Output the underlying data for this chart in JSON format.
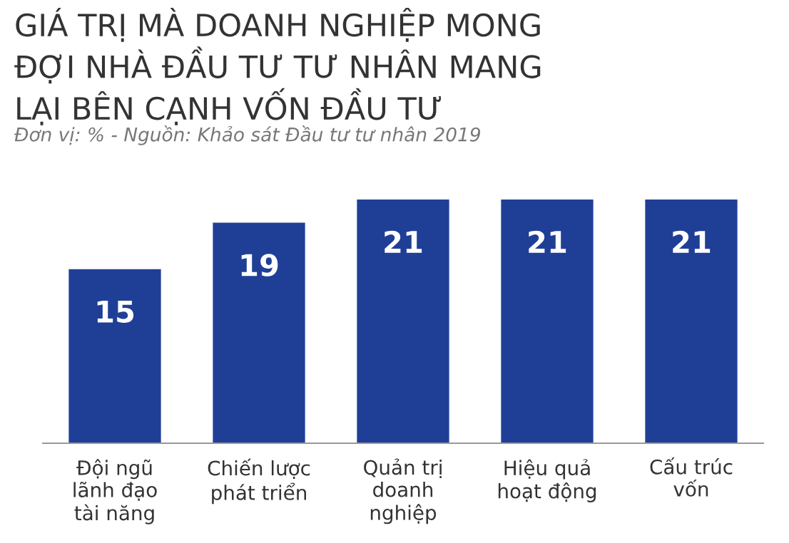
{
  "chart_data": {
    "type": "bar",
    "title": "GIÁ TRỊ MÀ DOANH NGHIỆP MONG\nĐỢI NHÀ ĐẦU TƯ TƯ NHÂN MANG\nLẠI BÊN CẠNH VỐN ĐẦU TƯ",
    "subtitle": "Đơn vị: % - Nguồn: Khảo sát Đầu tư tư nhân 2019",
    "categories": [
      "Đội ngũ\nlãnh đạo\ntài năng",
      "Chiến lược\nphát triển",
      "Quản trị\ndoanh\nnghiệp",
      "Hiệu quả\nhoạt động",
      "Cấu trúc\nvốn"
    ],
    "values": [
      15,
      19,
      21,
      21,
      21
    ],
    "color": "#1f3f97",
    "data_labels": true,
    "grid": false,
    "legend": false
  }
}
